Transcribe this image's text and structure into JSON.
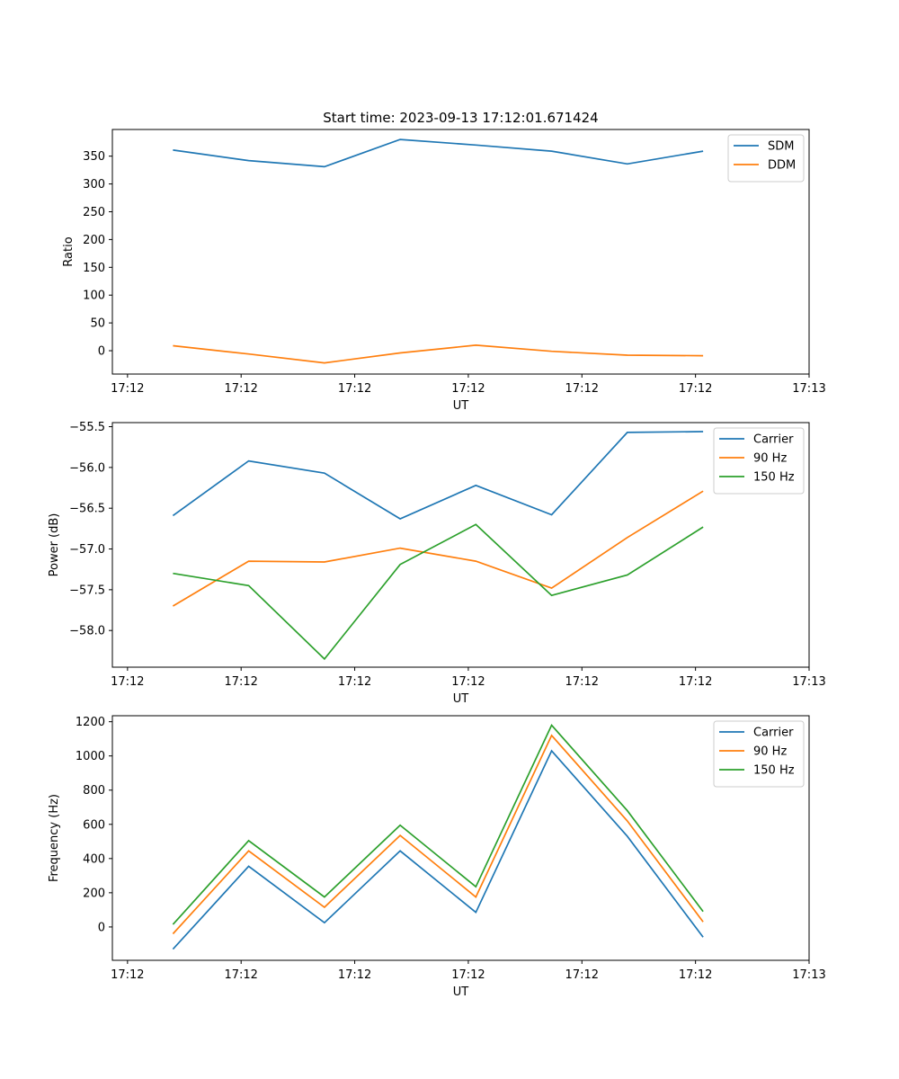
{
  "figure_title": "Start time: 2023-09-13 17:12:01.671424",
  "chart_data": [
    {
      "type": "line",
      "title": "Start time: 2023-09-13 17:12:01.671424",
      "xlabel": "UT",
      "ylabel": "Ratio",
      "x_index": [
        1,
        2,
        3,
        4,
        5,
        6,
        7,
        8
      ],
      "xlim": [
        0.2,
        9.4
      ],
      "x_ticks": [
        0.4,
        1.9,
        3.4,
        4.9,
        6.4,
        7.9,
        9.4
      ],
      "x_tick_labels": [
        "17:12",
        "17:12",
        "17:12",
        "17:12",
        "17:12",
        "17:12",
        "17:13"
      ],
      "ylim": [
        -42,
        398
      ],
      "y_ticks": [
        0,
        50,
        100,
        150,
        200,
        250,
        300,
        350
      ],
      "y_tick_labels": [
        "0",
        "50",
        "100",
        "150",
        "200",
        "250",
        "300",
        "350"
      ],
      "legend_position": "top-right",
      "series": [
        {
          "name": "SDM",
          "color": "#1f77b4",
          "values": [
            361,
            342,
            331,
            380,
            370,
            359,
            336,
            359
          ]
        },
        {
          "name": "DDM",
          "color": "#ff7f0e",
          "values": [
            9,
            -6,
            -22,
            -4,
            10,
            -1,
            -8,
            -9
          ]
        }
      ]
    },
    {
      "type": "line",
      "title": "",
      "xlabel": "UT",
      "ylabel": "Power (dB)",
      "x_index": [
        1,
        2,
        3,
        4,
        5,
        6,
        7,
        8
      ],
      "xlim": [
        0.2,
        9.4
      ],
      "x_ticks": [
        0.4,
        1.9,
        3.4,
        4.9,
        6.4,
        7.9,
        9.4
      ],
      "x_tick_labels": [
        "17:12",
        "17:12",
        "17:12",
        "17:12",
        "17:12",
        "17:12",
        "17:13"
      ],
      "ylim": [
        -58.45,
        -55.45
      ],
      "y_ticks": [
        -58.0,
        -57.5,
        -57.0,
        -56.5,
        -56.0,
        -55.5
      ],
      "y_tick_labels": [
        "−58.0",
        "−57.5",
        "−57.0",
        "−56.5",
        "−56.0",
        "−55.5"
      ],
      "legend_position": "top-right",
      "series": [
        {
          "name": "Carrier",
          "color": "#1f77b4",
          "values": [
            -56.59,
            -55.92,
            -56.07,
            -56.63,
            -56.22,
            -56.58,
            -55.57,
            -55.56
          ]
        },
        {
          "name": "90 Hz",
          "color": "#ff7f0e",
          "values": [
            -57.7,
            -57.15,
            -57.16,
            -56.99,
            -57.15,
            -57.48,
            -56.86,
            -56.29
          ]
        },
        {
          "name": "150 Hz",
          "color": "#2ca02c",
          "values": [
            -57.3,
            -57.45,
            -58.35,
            -57.19,
            -56.7,
            -57.57,
            -57.32,
            -56.73
          ]
        }
      ]
    },
    {
      "type": "line",
      "title": "",
      "xlabel": "UT",
      "ylabel": "Frequency (Hz)",
      "x_index": [
        1,
        2,
        3,
        4,
        5,
        6,
        7,
        8
      ],
      "xlim": [
        0.2,
        9.4
      ],
      "x_ticks": [
        0.4,
        1.9,
        3.4,
        4.9,
        6.4,
        7.9,
        9.4
      ],
      "x_tick_labels": [
        "17:12",
        "17:12",
        "17:12",
        "17:12",
        "17:12",
        "17:12",
        "17:13"
      ],
      "ylim": [
        -195,
        1235
      ],
      "y_ticks": [
        0,
        200,
        400,
        600,
        800,
        1000,
        1200
      ],
      "y_tick_labels": [
        "0",
        "200",
        "400",
        "600",
        "800",
        "1000",
        "1200"
      ],
      "legend_position": "top-right",
      "series": [
        {
          "name": "Carrier",
          "color": "#1f77b4",
          "values": [
            -130,
            355,
            25,
            445,
            85,
            1030,
            530,
            -60
          ]
        },
        {
          "name": "90 Hz",
          "color": "#ff7f0e",
          "values": [
            -40,
            445,
            115,
            535,
            175,
            1120,
            620,
            30
          ]
        },
        {
          "name": "150 Hz",
          "color": "#2ca02c",
          "values": [
            15,
            505,
            175,
            595,
            235,
            1180,
            680,
            90
          ]
        }
      ]
    }
  ]
}
